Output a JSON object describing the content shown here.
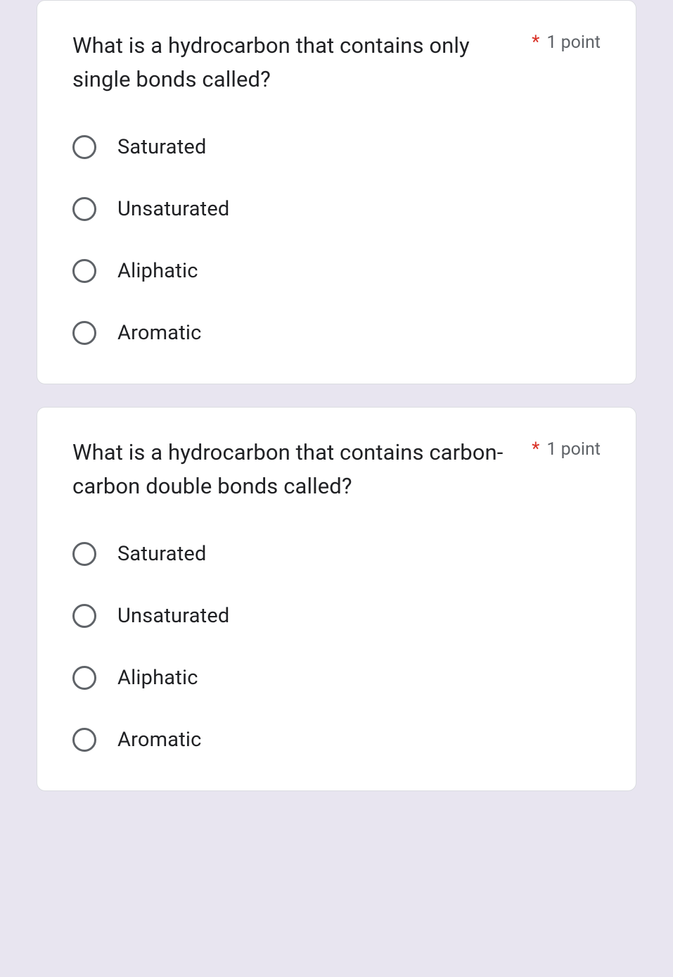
{
  "colors": {
    "background": "#e8e5f0",
    "card_bg": "#ffffff",
    "card_border": "#dadce0",
    "text_primary": "#202124",
    "text_secondary": "#5f6368",
    "required": "#d93025",
    "radio_border": "#5f6368"
  },
  "questions": [
    {
      "text": "What is a hydrocarbon that contains only single bonds called?",
      "required": "*",
      "points": "1 point",
      "options": [
        "Saturated",
        "Unsaturated",
        "Aliphatic",
        "Aromatic"
      ]
    },
    {
      "text": "What is a hydrocarbon that contains carbon-carbon double bonds called?",
      "required": "*",
      "points": "1 point",
      "options": [
        "Saturated",
        "Unsaturated",
        "Aliphatic",
        "Aromatic"
      ]
    }
  ]
}
